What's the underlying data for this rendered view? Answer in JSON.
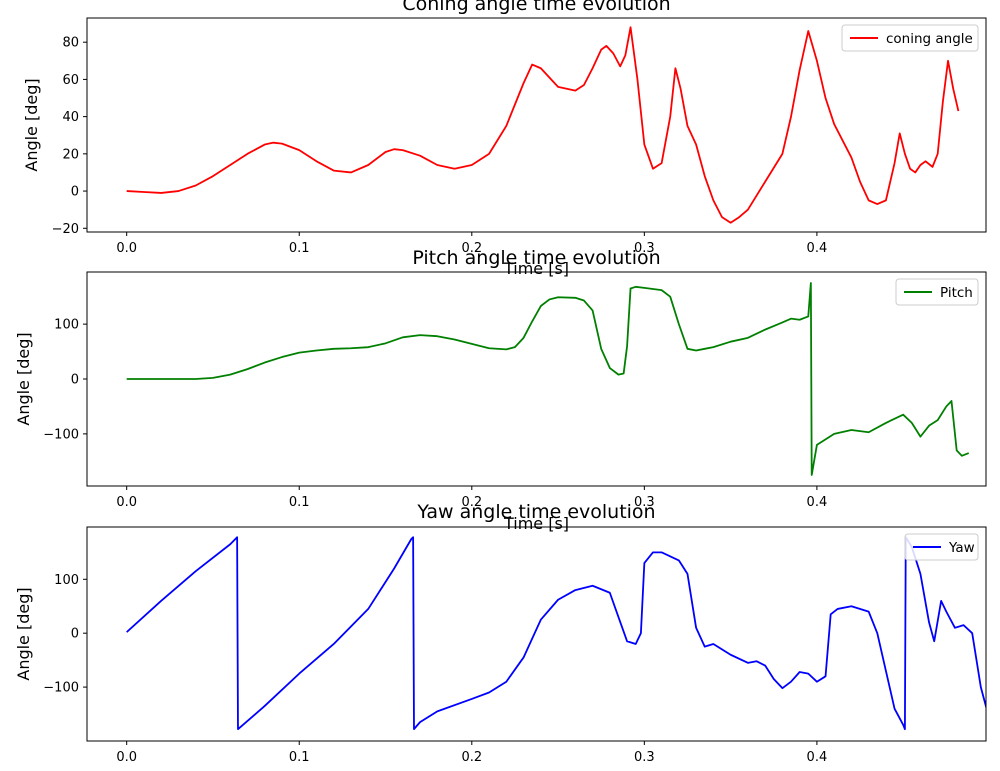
{
  "chart_data": [
    {
      "type": "line",
      "title": "Coning angle time evolution",
      "xlabel": "Time [s]",
      "ylabel": "Angle [deg]",
      "xlim": [
        -0.023,
        0.498
      ],
      "ylim": [
        -22,
        93
      ],
      "xticks": [
        0.0,
        0.1,
        0.2,
        0.3,
        0.4
      ],
      "xtick_labels": [
        "0.0",
        "0.1",
        "0.2",
        "0.3",
        "0.4"
      ],
      "yticks": [
        -20,
        0,
        20,
        40,
        60,
        80
      ],
      "ytick_labels": [
        "−20",
        "0",
        "20",
        "40",
        "60",
        "80"
      ],
      "grid": false,
      "legend": "top-right",
      "series": [
        {
          "name": "coning angle",
          "color": "#ff0000",
          "points": [
            [
              0.0,
              0
            ],
            [
              0.01,
              -0.5
            ],
            [
              0.02,
              -1
            ],
            [
              0.03,
              0
            ],
            [
              0.04,
              3
            ],
            [
              0.05,
              8
            ],
            [
              0.06,
              14
            ],
            [
              0.07,
              20
            ],
            [
              0.08,
              25
            ],
            [
              0.085,
              26
            ],
            [
              0.09,
              25.5
            ],
            [
              0.1,
              22
            ],
            [
              0.11,
              16
            ],
            [
              0.12,
              11
            ],
            [
              0.13,
              10
            ],
            [
              0.14,
              14
            ],
            [
              0.15,
              21
            ],
            [
              0.155,
              22.5
            ],
            [
              0.16,
              22
            ],
            [
              0.17,
              19
            ],
            [
              0.18,
              14
            ],
            [
              0.19,
              12
            ],
            [
              0.2,
              14
            ],
            [
              0.21,
              20
            ],
            [
              0.22,
              35
            ],
            [
              0.23,
              58
            ],
            [
              0.235,
              68
            ],
            [
              0.24,
              66
            ],
            [
              0.25,
              56
            ],
            [
              0.26,
              54
            ],
            [
              0.265,
              57
            ],
            [
              0.27,
              66
            ],
            [
              0.275,
              76
            ],
            [
              0.278,
              78
            ],
            [
              0.282,
              74
            ],
            [
              0.286,
              67
            ],
            [
              0.289,
              73
            ],
            [
              0.292,
              88
            ],
            [
              0.296,
              60
            ],
            [
              0.3,
              25
            ],
            [
              0.305,
              12
            ],
            [
              0.31,
              15
            ],
            [
              0.315,
              40
            ],
            [
              0.318,
              66
            ],
            [
              0.321,
              55
            ],
            [
              0.325,
              35
            ],
            [
              0.33,
              25
            ],
            [
              0.335,
              8
            ],
            [
              0.34,
              -5
            ],
            [
              0.345,
              -14
            ],
            [
              0.35,
              -17
            ],
            [
              0.355,
              -14
            ],
            [
              0.36,
              -10
            ],
            [
              0.37,
              5
            ],
            [
              0.38,
              20
            ],
            [
              0.385,
              40
            ],
            [
              0.39,
              65
            ],
            [
              0.395,
              86
            ],
            [
              0.4,
              70
            ],
            [
              0.405,
              50
            ],
            [
              0.41,
              36
            ],
            [
              0.42,
              18
            ],
            [
              0.425,
              5
            ],
            [
              0.43,
              -5
            ],
            [
              0.435,
              -7
            ],
            [
              0.44,
              -5
            ],
            [
              0.445,
              15
            ],
            [
              0.448,
              31
            ],
            [
              0.451,
              20
            ],
            [
              0.454,
              12
            ],
            [
              0.457,
              10
            ],
            [
              0.46,
              14
            ],
            [
              0.463,
              16
            ],
            [
              0.467,
              13
            ],
            [
              0.47,
              20
            ],
            [
              0.473,
              48
            ],
            [
              0.476,
              70
            ],
            [
              0.479,
              55
            ],
            [
              0.482,
              43
            ]
          ]
        }
      ]
    },
    {
      "type": "line",
      "title": "Pitch angle time evolution",
      "xlabel": "Time [s]",
      "ylabel": "Angle [deg]",
      "xlim": [
        -0.023,
        0.498
      ],
      "ylim": [
        -195,
        195
      ],
      "xticks": [
        0.0,
        0.1,
        0.2,
        0.3,
        0.4
      ],
      "xtick_labels": [
        "0.0",
        "0.1",
        "0.2",
        "0.3",
        "0.4"
      ],
      "yticks": [
        -100,
        0,
        100
      ],
      "ytick_labels": [
        "−100",
        "0",
        "100"
      ],
      "grid": false,
      "legend": "top-right",
      "series": [
        {
          "name": "Pitch",
          "color": "#008000",
          "points": [
            [
              0.0,
              0
            ],
            [
              0.02,
              0
            ],
            [
              0.04,
              0
            ],
            [
              0.05,
              2
            ],
            [
              0.06,
              8
            ],
            [
              0.07,
              18
            ],
            [
              0.08,
              30
            ],
            [
              0.09,
              40
            ],
            [
              0.1,
              48
            ],
            [
              0.11,
              52
            ],
            [
              0.12,
              55
            ],
            [
              0.13,
              56
            ],
            [
              0.14,
              58
            ],
            [
              0.15,
              65
            ],
            [
              0.16,
              76
            ],
            [
              0.17,
              80
            ],
            [
              0.18,
              78
            ],
            [
              0.19,
              72
            ],
            [
              0.2,
              64
            ],
            [
              0.21,
              56
            ],
            [
              0.22,
              54
            ],
            [
              0.225,
              58
            ],
            [
              0.23,
              75
            ],
            [
              0.235,
              105
            ],
            [
              0.24,
              133
            ],
            [
              0.245,
              145
            ],
            [
              0.25,
              149
            ],
            [
              0.26,
              148
            ],
            [
              0.265,
              143
            ],
            [
              0.27,
              125
            ],
            [
              0.275,
              55
            ],
            [
              0.28,
              20
            ],
            [
              0.285,
              8
            ],
            [
              0.288,
              10
            ],
            [
              0.29,
              60
            ],
            [
              0.292,
              165
            ],
            [
              0.295,
              168
            ],
            [
              0.3,
              166
            ],
            [
              0.31,
              162
            ],
            [
              0.315,
              150
            ],
            [
              0.32,
              100
            ],
            [
              0.325,
              55
            ],
            [
              0.33,
              52
            ],
            [
              0.335,
              55
            ],
            [
              0.34,
              58
            ],
            [
              0.35,
              68
            ],
            [
              0.36,
              75
            ],
            [
              0.37,
              90
            ],
            [
              0.38,
              103
            ],
            [
              0.385,
              110
            ],
            [
              0.39,
              108
            ],
            [
              0.395,
              114
            ],
            [
              0.3965,
              175
            ],
            [
              0.397,
              -175
            ],
            [
              0.4,
              -120
            ],
            [
              0.41,
              -100
            ],
            [
              0.42,
              -93
            ],
            [
              0.43,
              -97
            ],
            [
              0.44,
              -80
            ],
            [
              0.45,
              -65
            ],
            [
              0.455,
              -80
            ],
            [
              0.46,
              -105
            ],
            [
              0.465,
              -85
            ],
            [
              0.47,
              -75
            ],
            [
              0.475,
              -50
            ],
            [
              0.478,
              -40
            ],
            [
              0.481,
              -130
            ],
            [
              0.484,
              -140
            ],
            [
              0.488,
              -135
            ]
          ]
        }
      ]
    },
    {
      "type": "line",
      "title": "Yaw angle time evolution",
      "xlabel": "",
      "ylabel": "Angle [deg]",
      "xlim": [
        -0.023,
        0.498
      ],
      "ylim": [
        -200,
        197
      ],
      "xticks": [
        0.0,
        0.1,
        0.2,
        0.3,
        0.4
      ],
      "xtick_labels": [
        "0.0",
        "0.1",
        "0.2",
        "0.3",
        "0.4"
      ],
      "yticks": [
        -100,
        0,
        100
      ],
      "ytick_labels": [
        "−100",
        "0",
        "100"
      ],
      "grid": false,
      "legend": "top-right",
      "series": [
        {
          "name": "Yaw",
          "color": "#0000ff",
          "points": [
            [
              0.0,
              2
            ],
            [
              0.02,
              60
            ],
            [
              0.04,
              115
            ],
            [
              0.06,
              165
            ],
            [
              0.064,
              178
            ],
            [
              0.0645,
              -178
            ],
            [
              0.08,
              -135
            ],
            [
              0.1,
              -75
            ],
            [
              0.12,
              -20
            ],
            [
              0.14,
              45
            ],
            [
              0.155,
              120
            ],
            [
              0.165,
              175
            ],
            [
              0.166,
              178
            ],
            [
              0.1665,
              -178
            ],
            [
              0.17,
              -165
            ],
            [
              0.18,
              -145
            ],
            [
              0.2,
              -122
            ],
            [
              0.21,
              -110
            ],
            [
              0.22,
              -90
            ],
            [
              0.23,
              -45
            ],
            [
              0.24,
              25
            ],
            [
              0.25,
              62
            ],
            [
              0.26,
              80
            ],
            [
              0.27,
              88
            ],
            [
              0.28,
              75
            ],
            [
              0.285,
              30
            ],
            [
              0.29,
              -15
            ],
            [
              0.295,
              -20
            ],
            [
              0.298,
              0
            ],
            [
              0.3,
              130
            ],
            [
              0.305,
              150
            ],
            [
              0.31,
              150
            ],
            [
              0.32,
              135
            ],
            [
              0.325,
              110
            ],
            [
              0.33,
              10
            ],
            [
              0.335,
              -25
            ],
            [
              0.34,
              -20
            ],
            [
              0.35,
              -40
            ],
            [
              0.36,
              -55
            ],
            [
              0.365,
              -52
            ],
            [
              0.37,
              -60
            ],
            [
              0.375,
              -85
            ],
            [
              0.38,
              -102
            ],
            [
              0.385,
              -90
            ],
            [
              0.39,
              -72
            ],
            [
              0.395,
              -75
            ],
            [
              0.4,
              -90
            ],
            [
              0.405,
              -80
            ],
            [
              0.408,
              35
            ],
            [
              0.412,
              45
            ],
            [
              0.42,
              50
            ],
            [
              0.43,
              40
            ],
            [
              0.435,
              0
            ],
            [
              0.44,
              -70
            ],
            [
              0.445,
              -140
            ],
            [
              0.45,
              -170
            ],
            [
              0.451,
              -178
            ],
            [
              0.4515,
              178
            ],
            [
              0.455,
              160
            ],
            [
              0.46,
              110
            ],
            [
              0.465,
              20
            ],
            [
              0.468,
              -15
            ],
            [
              0.472,
              60
            ],
            [
              0.475,
              40
            ],
            [
              0.48,
              10
            ],
            [
              0.485,
              15
            ],
            [
              0.49,
              0
            ],
            [
              0.495,
              -100
            ],
            [
              0.5,
              -160
            ],
            [
              0.503,
              -170
            ]
          ]
        }
      ]
    }
  ]
}
